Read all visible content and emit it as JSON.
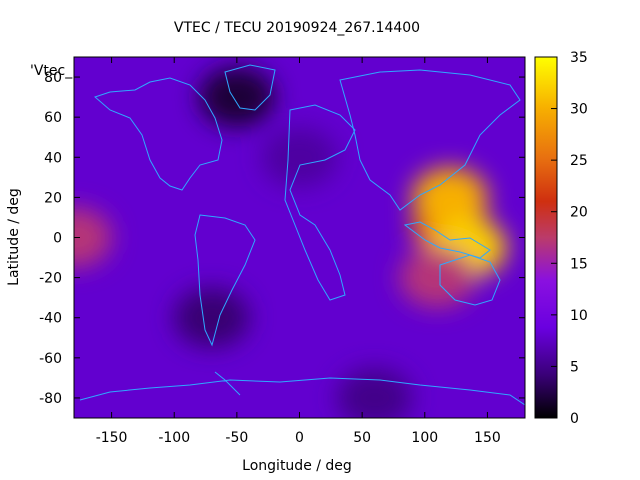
{
  "chart_data": {
    "type": "heatmap",
    "title": "VTEC / TECU 20190924_267.14400",
    "xlabel": "Longitude / deg",
    "ylabel": "Latitude / deg",
    "key_label": "'Vtec_",
    "xlim": [
      -180,
      180
    ],
    "ylim": [
      -90,
      90
    ],
    "x_ticks": [
      -150,
      -100,
      -50,
      0,
      50,
      100,
      150
    ],
    "y_ticks": [
      -80,
      -60,
      -40,
      -20,
      0,
      20,
      40,
      60,
      80
    ],
    "colorbar": {
      "range": [
        0,
        35
      ],
      "ticks": [
        0,
        5,
        10,
        15,
        20,
        25,
        30,
        35
      ]
    },
    "palette": "gnuplot-rgbformulae-7-5-15",
    "background_level": 8,
    "features": [
      {
        "lon": -180,
        "lat": 0,
        "value": 17
      },
      {
        "lon": 120,
        "lat": 5,
        "value": 25
      },
      {
        "lon": 120,
        "lat": 20,
        "value": 30
      },
      {
        "lon": 135,
        "lat": -5,
        "value": 32
      },
      {
        "lon": 110,
        "lat": -20,
        "value": 17
      },
      {
        "lon": -70,
        "lat": -40,
        "value": 4
      },
      {
        "lon": -50,
        "lat": 70,
        "value": 2
      },
      {
        "lon": 0,
        "lat": 40,
        "value": 6
      },
      {
        "lon": 60,
        "lat": -80,
        "value": 5
      }
    ],
    "grid": false,
    "legend": "top-left"
  }
}
